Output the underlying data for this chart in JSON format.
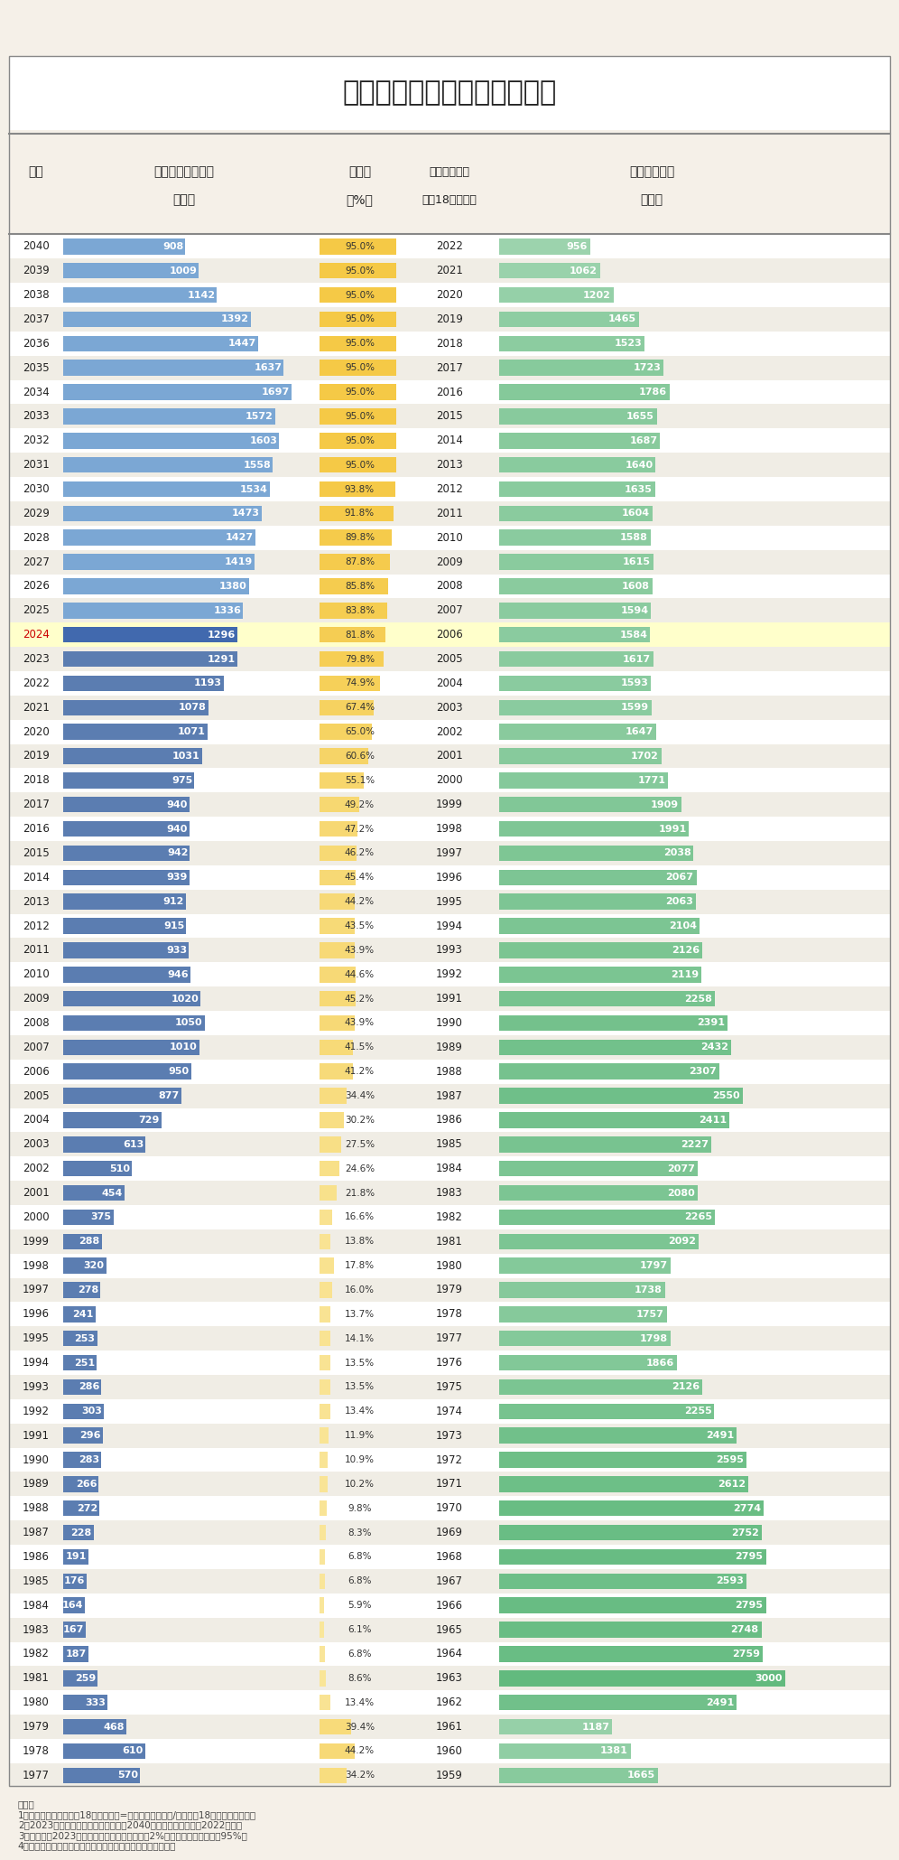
{
  "title": "历年高考人数统计及预测分析",
  "years": [
    2040,
    2039,
    2038,
    2037,
    2036,
    2035,
    2034,
    2033,
    2032,
    2031,
    2030,
    2029,
    2028,
    2027,
    2026,
    2025,
    2024,
    2023,
    2022,
    2021,
    2020,
    2019,
    2018,
    2017,
    2016,
    2015,
    2014,
    2013,
    2012,
    2011,
    2010,
    2009,
    2008,
    2007,
    2006,
    2005,
    2004,
    2003,
    2002,
    2001,
    2000,
    1999,
    1998,
    1997,
    1996,
    1995,
    1994,
    1993,
    1992,
    1991,
    1990,
    1989,
    1988,
    1987,
    1986,
    1985,
    1984,
    1983,
    1982,
    1981,
    1980,
    1979,
    1978,
    1977
  ],
  "gaokao_count": [
    908,
    1009,
    1142,
    1392,
    1447,
    1637,
    1697,
    1572,
    1603,
    1558,
    1534,
    1473,
    1427,
    1419,
    1380,
    1336,
    1296,
    1291,
    1193,
    1078,
    1071,
    1031,
    975,
    940,
    940,
    942,
    939,
    912,
    915,
    933,
    946,
    1020,
    1050,
    1010,
    950,
    877,
    729,
    613,
    510,
    454,
    375,
    288,
    320,
    278,
    241,
    253,
    251,
    286,
    303,
    296,
    283,
    266,
    272,
    228,
    191,
    176,
    164,
    167,
    187,
    259,
    333,
    468,
    610,
    570
  ],
  "participation_rate": [
    95.0,
    95.0,
    95.0,
    95.0,
    95.0,
    95.0,
    95.0,
    95.0,
    95.0,
    95.0,
    93.8,
    91.8,
    89.8,
    87.8,
    85.8,
    83.8,
    81.8,
    79.8,
    74.9,
    67.4,
    65.0,
    60.6,
    55.1,
    49.2,
    47.2,
    46.2,
    45.4,
    44.2,
    43.5,
    43.9,
    44.6,
    45.2,
    43.9,
    41.5,
    41.2,
    34.4,
    30.2,
    27.5,
    24.6,
    21.8,
    16.6,
    13.8,
    17.8,
    16.0,
    13.7,
    14.1,
    13.5,
    13.5,
    13.4,
    11.9,
    10.9,
    10.2,
    9.8,
    8.3,
    6.8,
    6.8,
    5.9,
    6.1,
    6.8,
    8.6,
    13.4,
    39.4,
    44.2,
    34.2
  ],
  "birth_years": [
    2022,
    2021,
    2020,
    2019,
    2018,
    2017,
    2016,
    2015,
    2014,
    2013,
    2012,
    2011,
    2010,
    2009,
    2008,
    2007,
    2006,
    2005,
    2004,
    2003,
    2002,
    2001,
    2000,
    1999,
    1998,
    1997,
    1996,
    1995,
    1994,
    1993,
    1992,
    1991,
    1990,
    1989,
    1988,
    1987,
    1986,
    1985,
    1984,
    1983,
    1982,
    1981,
    1980,
    1979,
    1978,
    1977,
    1976,
    1975,
    1974,
    1973,
    1972,
    1971,
    1970,
    1969,
    1968,
    1967,
    1966,
    1965,
    1964,
    1963,
    1962,
    1961,
    1960,
    1959
  ],
  "birth_population": [
    956,
    1062,
    1202,
    1465,
    1523,
    1723,
    1786,
    1655,
    1687,
    1640,
    1635,
    1604,
    1588,
    1615,
    1608,
    1594,
    1584,
    1617,
    1593,
    1599,
    1647,
    1702,
    1771,
    1909,
    1991,
    2038,
    2067,
    2063,
    2104,
    2126,
    2119,
    2258,
    2391,
    2432,
    2307,
    2550,
    2411,
    2227,
    2077,
    2080,
    2265,
    2092,
    1797,
    1738,
    1757,
    1798,
    1866,
    2126,
    2255,
    2491,
    2595,
    2612,
    2774,
    2752,
    2795,
    2593,
    2795,
    2748,
    2759,
    3000,
    2491,
    1187,
    1381,
    1665
  ],
  "highlight_year": 2024,
  "col1_header1": "年份",
  "col2_header1": "当年参加高考人数",
  "col2_header2": "（万）",
  "col3_header1": "参考率",
  "col3_header2": "（%）",
  "col4_header1": "学生出生年份",
  "col4_header2": "（按18岁参考）",
  "col5_header1": "当年出生人口",
  "col5_header2": "（万）",
  "note": "备注：\n1、假设高考平均年龄为18岁，参考率=当年参加高考人数/（出生于18年前出生人口）；\n2、2023年以后数据为预测，预测满至2040年（出生人口统计至2022年）；\n3、参考率以2023年数据为基础，按照每年递增2%测算，直至参考率达到95%；\n4、恢复高考初期的参考年龄较大，图表未作调整，仅作参考；",
  "bar_color_gaokao_future": "#6B9AC4",
  "bar_color_gaokao_past": "#5B7DB1",
  "bar_color_gaokao_highlight": "#4169AE",
  "bar_color_rate_high": "#F5C842",
  "bar_color_rate_low": "#FAE8A0",
  "bar_color_birth_high": "#5DB87A",
  "bar_color_birth_low": "#B8DFC4",
  "bg_color": "#F5F0E8",
  "header_bg": "#DDCFB5"
}
